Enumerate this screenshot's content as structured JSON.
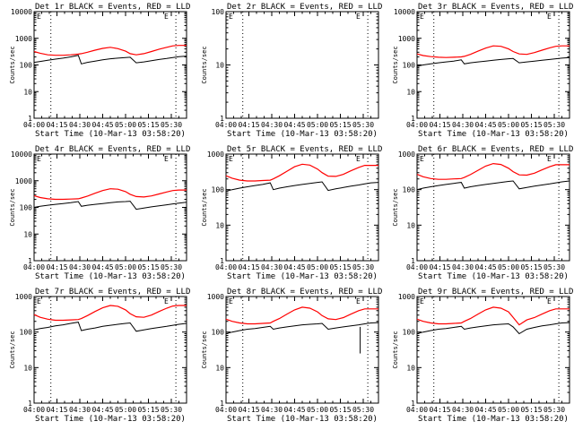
{
  "chart_data": {
    "type": "line",
    "ylabel": "Counts/sec",
    "xlabel": "Start Time (10-Mar-13 03:58:20)",
    "x_tick_labels": [
      "04:00",
      "04:15",
      "04:30",
      "04:45",
      "05:00",
      "05:15",
      "05:30"
    ],
    "y_tick_labels": [
      "1",
      "10",
      "100",
      "1000",
      "10000"
    ],
    "x_range_minutes_after_0400": [
      0,
      100
    ],
    "y_scale": "log",
    "line_colors": {
      "events": "#000000",
      "lld": "#ff0000"
    },
    "corner_marker": "E",
    "panels": [
      {
        "title": "Det 1r BLACK = Events, RED = LLD",
        "ylim": [
          1,
          10000
        ],
        "has_data": true,
        "lld_shape": "A",
        "dip": false,
        "dotted_x_minutes": [
          11,
          93
        ],
        "events_x": [
          0,
          4,
          9,
          14,
          19,
          24,
          29,
          31,
          35,
          40,
          45,
          50,
          55,
          60,
          63,
          67,
          72,
          77,
          82,
          87,
          91,
          95,
          100
        ],
        "events": [
          125,
          135,
          150,
          165,
          180,
          200,
          230,
          110,
          125,
          140,
          155,
          170,
          180,
          190,
          195,
          120,
          130,
          145,
          160,
          175,
          190,
          205,
          215
        ],
        "lld_x": [
          0,
          4,
          9,
          14,
          19,
          24,
          29,
          31,
          35,
          40,
          45,
          50,
          55,
          60,
          63,
          67,
          72,
          77,
          82,
          87,
          91,
          95,
          100
        ],
        "lld": [
          320,
          275,
          240,
          230,
          230,
          240,
          255,
          265,
          300,
          360,
          420,
          460,
          410,
          330,
          265,
          240,
          265,
          320,
          390,
          460,
          520,
          540,
          540
        ]
      },
      {
        "title": "Det 2r BLACK = Events, RED = LLD",
        "ylim": [
          1,
          100
        ],
        "has_data": false,
        "dotted_x_minutes": [
          11,
          93
        ]
      },
      {
        "title": "Det 3r BLACK = Events, RED = LLD",
        "ylim": [
          1,
          10000
        ],
        "has_data": true,
        "lld_shape": "B",
        "dip": false,
        "dotted_x_minutes": [
          11,
          93
        ],
        "events_x": [
          0,
          4,
          9,
          14,
          19,
          24,
          29,
          31,
          35,
          40,
          45,
          50,
          55,
          60,
          63,
          67,
          72,
          77,
          82,
          87,
          91,
          95,
          100
        ],
        "events": [
          90,
          100,
          110,
          120,
          130,
          140,
          155,
          110,
          120,
          130,
          140,
          150,
          160,
          170,
          175,
          120,
          130,
          140,
          150,
          160,
          170,
          180,
          190
        ],
        "lld_x": [
          0,
          4,
          9,
          14,
          19,
          24,
          29,
          31,
          35,
          40,
          45,
          50,
          55,
          60,
          63,
          67,
          72,
          77,
          82,
          87,
          91,
          95,
          100
        ],
        "lld": [
          260,
          225,
          205,
          195,
          190,
          195,
          200,
          210,
          250,
          330,
          430,
          520,
          500,
          400,
          320,
          260,
          250,
          290,
          360,
          440,
          500,
          520,
          520
        ]
      },
      {
        "title": "Det 4r BLACK = Events, RED = LLD",
        "ylim": [
          1,
          10000
        ],
        "has_data": true,
        "lld_shape": "B",
        "dip": false,
        "dotted_x_minutes": [
          11,
          93
        ],
        "events_x": [
          0,
          4,
          9,
          14,
          19,
          24,
          29,
          31,
          35,
          40,
          45,
          50,
          55,
          60,
          63,
          67,
          72,
          77,
          82,
          87,
          91,
          95,
          100
        ],
        "events": [
          100,
          110,
          120,
          130,
          140,
          150,
          165,
          110,
          120,
          130,
          140,
          150,
          160,
          165,
          170,
          85,
          95,
          105,
          115,
          125,
          135,
          145,
          155
        ],
        "lld_x": [
          0,
          4,
          9,
          14,
          19,
          24,
          29,
          31,
          35,
          40,
          45,
          50,
          55,
          60,
          63,
          67,
          72,
          77,
          82,
          87,
          91,
          95,
          100
        ],
        "lld": [
          275,
          235,
          210,
          200,
          200,
          205,
          210,
          225,
          265,
          340,
          430,
          500,
          480,
          390,
          310,
          255,
          245,
          270,
          320,
          380,
          430,
          450,
          450
        ]
      },
      {
        "title": "Det 5r BLACK = Events, RED = LLD",
        "ylim": [
          1,
          1000
        ],
        "has_data": true,
        "lld_shape": "B",
        "dip": false,
        "dotted_x_minutes": [
          11,
          93
        ],
        "events_x": [
          0,
          4,
          9,
          14,
          19,
          24,
          29,
          31,
          35,
          40,
          45,
          50,
          55,
          60,
          63,
          67,
          72,
          77,
          82,
          87,
          91,
          95,
          100
        ],
        "events": [
          90,
          100,
          110,
          120,
          130,
          140,
          155,
          100,
          110,
          120,
          130,
          140,
          150,
          160,
          165,
          95,
          105,
          115,
          125,
          135,
          145,
          155,
          160
        ],
        "lld_x": [
          0,
          4,
          9,
          14,
          19,
          24,
          29,
          31,
          35,
          40,
          45,
          50,
          55,
          60,
          63,
          67,
          72,
          77,
          82,
          87,
          91,
          95,
          100
        ],
        "lld": [
          245,
          210,
          185,
          175,
          175,
          180,
          185,
          200,
          245,
          330,
          440,
          520,
          490,
          380,
          300,
          240,
          235,
          270,
          340,
          420,
          480,
          480,
          480
        ]
      },
      {
        "title": "Det 6r BLACK = Events, RED = LLD",
        "ylim": [
          1,
          1000
        ],
        "has_data": true,
        "lld_shape": "B",
        "dip": false,
        "dotted_x_minutes": [
          11,
          93
        ],
        "events_x": [
          0,
          4,
          9,
          14,
          19,
          24,
          29,
          31,
          35,
          40,
          45,
          50,
          55,
          60,
          63,
          67,
          72,
          77,
          82,
          87,
          91,
          95,
          100
        ],
        "events": [
          100,
          110,
          120,
          130,
          140,
          150,
          160,
          110,
          120,
          130,
          140,
          150,
          160,
          170,
          175,
          105,
          115,
          125,
          135,
          145,
          155,
          165,
          175
        ],
        "lld_x": [
          0,
          4,
          9,
          14,
          19,
          24,
          29,
          31,
          35,
          40,
          45,
          50,
          55,
          60,
          63,
          67,
          72,
          77,
          82,
          87,
          91,
          95,
          100
        ],
        "lld": [
          270,
          230,
          205,
          195,
          195,
          200,
          205,
          220,
          265,
          350,
          460,
          540,
          510,
          400,
          320,
          260,
          255,
          290,
          360,
          440,
          500,
          500,
          500
        ]
      },
      {
        "title": "Det 7r BLACK = Events, RED = LLD",
        "ylim": [
          1,
          1000
        ],
        "has_data": true,
        "lld_shape": "B",
        "dip": false,
        "dotted_x_minutes": [
          11,
          93
        ],
        "events_x": [
          0,
          4,
          9,
          14,
          19,
          24,
          29,
          31,
          35,
          40,
          45,
          50,
          55,
          60,
          63,
          67,
          72,
          77,
          82,
          87,
          91,
          95,
          100
        ],
        "events": [
          115,
          125,
          135,
          150,
          160,
          175,
          190,
          110,
          120,
          130,
          145,
          155,
          165,
          175,
          180,
          105,
          115,
          125,
          135,
          145,
          155,
          165,
          175
        ],
        "lld_x": [
          0,
          4,
          9,
          14,
          19,
          24,
          29,
          31,
          35,
          40,
          45,
          50,
          55,
          60,
          63,
          67,
          72,
          77,
          82,
          87,
          91,
          95,
          100
        ],
        "lld": [
          310,
          260,
          230,
          215,
          215,
          220,
          225,
          240,
          290,
          380,
          480,
          560,
          530,
          420,
          330,
          270,
          260,
          300,
          380,
          470,
          540,
          560,
          560
        ]
      },
      {
        "title": "Det 8r BLACK = Events, RED = LLD",
        "ylim": [
          1,
          1000
        ],
        "has_data": true,
        "lld_shape": "B",
        "dip": true,
        "dotted_x_minutes": [
          11,
          93
        ],
        "events_x": [
          0,
          4,
          9,
          14,
          19,
          24,
          29,
          31,
          35,
          40,
          45,
          50,
          55,
          60,
          63,
          67,
          72,
          77,
          82,
          87,
          91,
          95,
          100
        ],
        "events": [
          90,
          100,
          110,
          120,
          125,
          135,
          145,
          120,
          130,
          140,
          150,
          160,
          165,
          170,
          175,
          120,
          130,
          140,
          150,
          160,
          170,
          180,
          185
        ],
        "lld_x": [
          0,
          4,
          9,
          14,
          19,
          24,
          29,
          31,
          35,
          40,
          45,
          50,
          55,
          60,
          63,
          67,
          72,
          77,
          82,
          87,
          91,
          95,
          100
        ],
        "lld": [
          230,
          200,
          180,
          170,
          170,
          175,
          180,
          200,
          240,
          320,
          420,
          500,
          470,
          370,
          290,
          235,
          225,
          255,
          320,
          400,
          450,
          450,
          450
        ]
      },
      {
        "title": "Det 9r BLACK = Events, RED = LLD",
        "ylim": [
          1,
          1000
        ],
        "has_data": true,
        "lld_shape": "B",
        "dip": false,
        "dotted_x_minutes": [
          11,
          93
        ],
        "events_x": [
          0,
          4,
          9,
          14,
          19,
          24,
          29,
          31,
          35,
          40,
          45,
          50,
          55,
          60,
          63,
          67,
          72,
          77,
          82,
          87,
          91,
          95,
          100
        ],
        "events": [
          90,
          100,
          110,
          120,
          125,
          135,
          145,
          120,
          130,
          140,
          150,
          160,
          165,
          170,
          140,
          90,
          120,
          135,
          150,
          160,
          170,
          180,
          185
        ],
        "lld_x": [
          0,
          4,
          9,
          14,
          19,
          24,
          29,
          31,
          35,
          40,
          45,
          50,
          55,
          60,
          63,
          67,
          72,
          77,
          82,
          87,
          91,
          95,
          100
        ],
        "lld": [
          230,
          200,
          180,
          170,
          170,
          175,
          180,
          200,
          240,
          320,
          420,
          500,
          470,
          370,
          260,
          160,
          220,
          255,
          320,
          400,
          450,
          450,
          450
        ]
      }
    ]
  }
}
